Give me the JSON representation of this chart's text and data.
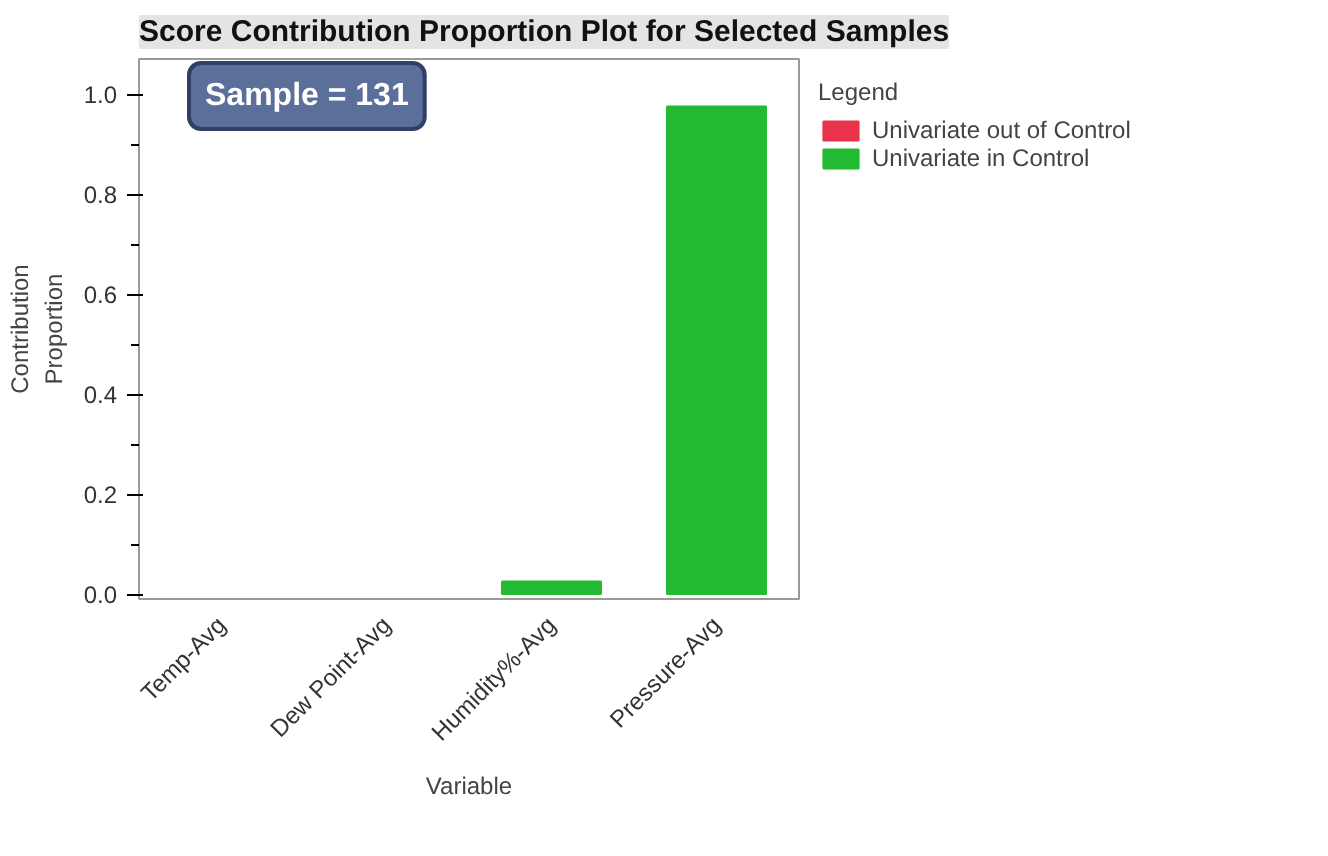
{
  "chart_data": {
    "type": "bar",
    "title": "Score Contribution Proportion Plot for Selected Samples",
    "xlabel": "Variable",
    "ylabel": "Contribution\nProportion",
    "legend_title": "Legend",
    "categories": [
      "Temp-Avg",
      "Dew Point-Avg",
      "Humidity%-Avg",
      "Pressure-Avg"
    ],
    "series": [
      {
        "name": "Univariate out of Control",
        "color": "#e8334a",
        "values": [
          null,
          null,
          null,
          null
        ]
      },
      {
        "name": "Univariate in Control",
        "color": "#22bb33",
        "values": [
          null,
          null,
          0.025,
          0.975
        ]
      }
    ],
    "ylim": [
      -0.01,
      1.07
    ],
    "yticks": [
      {
        "value": 0,
        "label": "0.0"
      },
      0.2,
      0.4,
      0.6,
      0.8,
      {
        "value": 1,
        "label": "1.0"
      }
    ],
    "grid": false,
    "legend": "right",
    "annotations": [
      "Sample = 131"
    ]
  }
}
